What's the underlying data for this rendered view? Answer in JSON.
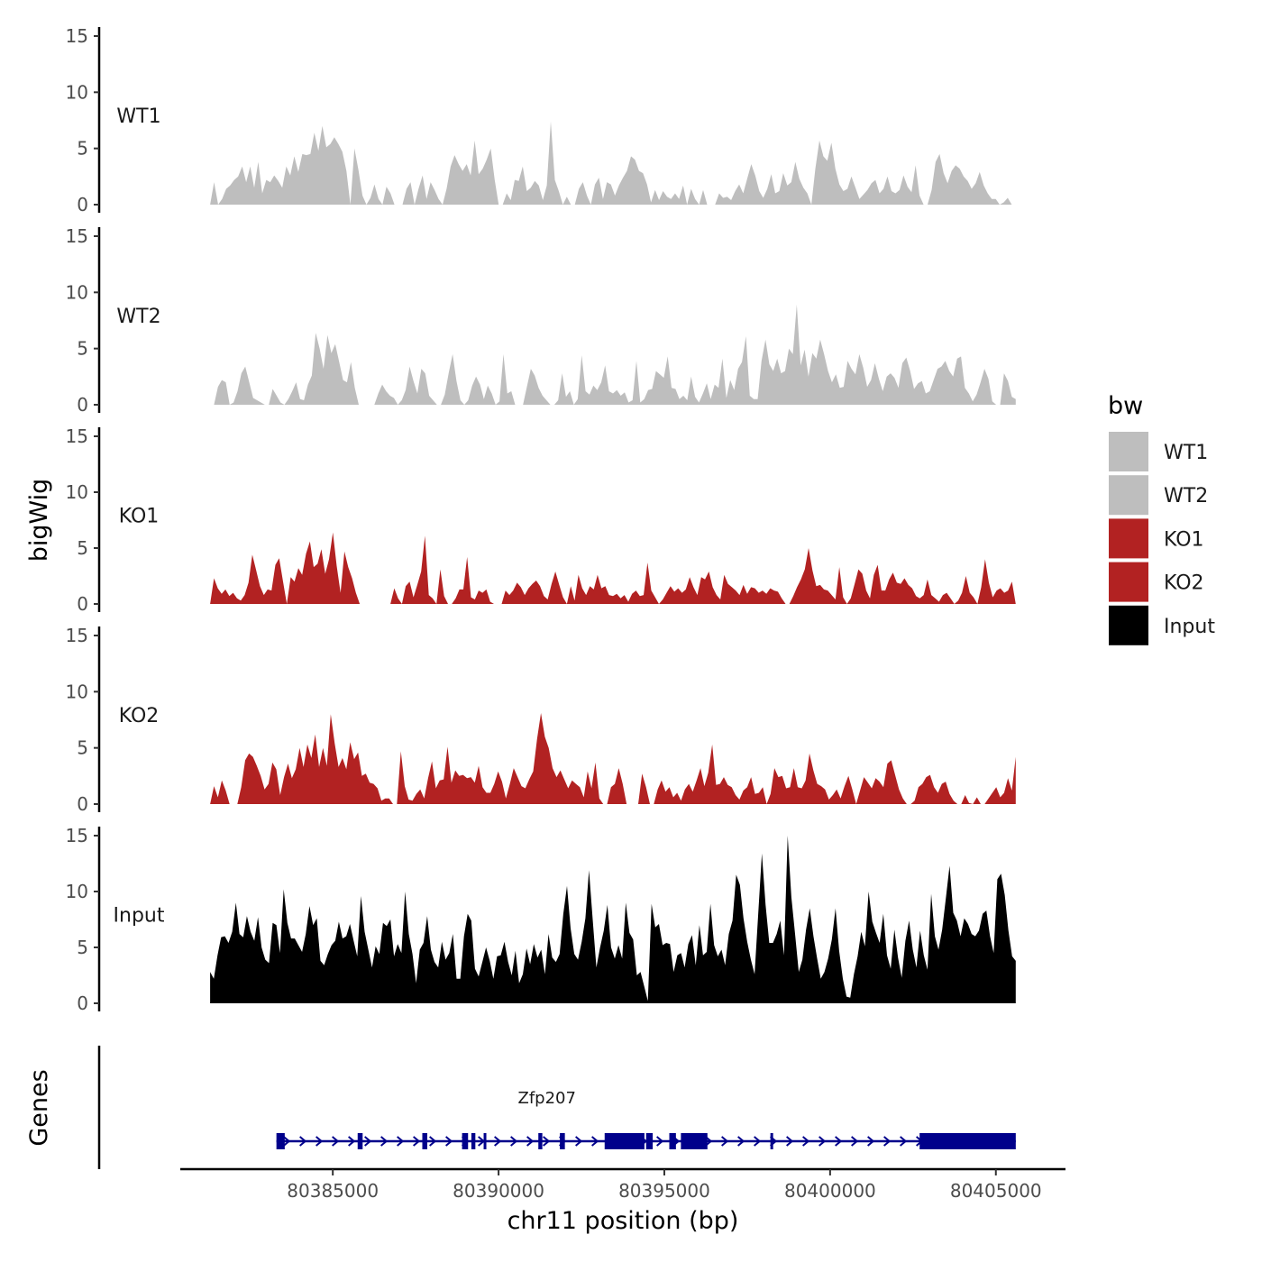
{
  "chart_data": {
    "type": "area",
    "title": "",
    "ylabel": "bigWig",
    "xlabel": "chr11 position (bp)",
    "genes_track_label": "Genes",
    "ylim": [
      0,
      15
    ],
    "yticks": [
      0,
      5,
      10,
      15
    ],
    "ytick_labels": [
      "0",
      "5",
      "10",
      "15"
    ],
    "xlim": [
      80380400,
      80407100
    ],
    "xticks": [
      80385000,
      80390000,
      80395000,
      80400000,
      80405000
    ],
    "xtick_labels": [
      "80385000",
      "80390000",
      "80395000",
      "80400000",
      "80405000"
    ],
    "legend": {
      "title": "bw",
      "placement": "right",
      "entries": [
        {
          "label": "WT1",
          "color": "#BEBEBE"
        },
        {
          "label": "WT2",
          "color": "#BEBEBE"
        },
        {
          "label": "KO1",
          "color": "#B22222"
        },
        {
          "label": "KO2",
          "color": "#B22222"
        },
        {
          "label": "Input",
          "color": "#000000"
        }
      ]
    },
    "series": [
      {
        "name": "WT1",
        "color": "#BEBEBE",
        "x_start": 80381300,
        "x_end": 80405600,
        "values": [
          0,
          2.0,
          0,
          0.5,
          1.4,
          1.7,
          2.2,
          2.5,
          3.4,
          2.0,
          3.4,
          1.5,
          3.8,
          1.0,
          2.2,
          2.0,
          2.6,
          2.1,
          1.5,
          3.4,
          2.6,
          4.3,
          2.9,
          4.5,
          4.4,
          4.5,
          6.4,
          4.8,
          7.0,
          5.1,
          5.4,
          6.0,
          5.4,
          4.7,
          3.0,
          0,
          5.0,
          3.1,
          0.8,
          0,
          0.6,
          1.8,
          0.5,
          0,
          1.6,
          1.0,
          0,
          0,
          0,
          1.4,
          2.0,
          0,
          1.4,
          2.6,
          0.5,
          2.0,
          1.3,
          0.5,
          0,
          1.4,
          3.4,
          4.4,
          3.6,
          3.0,
          3.6,
          2.6,
          5.7,
          2.7,
          3.2,
          4.0,
          5.0,
          2.2,
          0,
          0,
          1.0,
          0.4,
          2.2,
          2.1,
          3.4,
          1.2,
          1.5,
          2.1,
          1.7,
          0.4,
          1.7,
          7.4,
          2.2,
          1.2,
          0,
          0.7,
          0,
          0,
          1.4,
          2.0,
          0.8,
          0,
          1.8,
          2.4,
          0.5,
          2.0,
          1.8,
          0.8,
          1.7,
          2.4,
          3.0,
          4.3,
          4.0,
          3.0,
          2.8,
          1.8,
          0.2,
          1.3,
          0.4,
          1.2,
          0.7,
          0.5,
          1.0,
          0.5,
          1.7,
          0,
          1.4,
          0.5,
          0,
          1.3,
          0,
          0,
          0,
          1.0,
          0.6,
          0.7,
          0.4,
          1.2,
          1.8,
          1.0,
          2.3,
          3.6,
          2.6,
          1.2,
          0.6,
          1.4,
          2.7,
          1.0,
          1.2,
          2.8,
          1.7,
          2.0,
          3.8,
          2.3,
          1.5,
          1.0,
          0,
          3.2,
          5.7,
          4.3,
          3.9,
          5.5,
          3.2,
          1.8,
          1.2,
          1.4,
          2.5,
          1.5,
          0.5,
          0.9,
          1.3,
          1.9,
          2.2,
          1.0,
          1.4,
          2.5,
          1.2,
          1.0,
          1.3,
          2.6,
          1.6,
          1.1,
          3.5,
          0.8,
          0,
          0,
          1.3,
          3.8,
          4.5,
          2.8,
          1.9,
          3.0,
          3.5,
          3.2,
          2.5,
          2.1,
          1.4,
          1.9,
          2.9,
          1.7,
          1.0,
          0.5,
          0.5,
          0,
          0.2,
          0.6,
          0,
          0
        ]
      },
      {
        "name": "WT2",
        "color": "#BEBEBE",
        "x_start": 80381300,
        "x_end": 80405600,
        "values": [
          0,
          0,
          1.6,
          2.2,
          2.0,
          0,
          0.2,
          1.2,
          2.8,
          3.4,
          2.0,
          0.6,
          0.4,
          0.2,
          0,
          0,
          1.4,
          0.8,
          0.2,
          0,
          0.5,
          1.2,
          2.0,
          0.5,
          0.4,
          1.8,
          2.6,
          6.4,
          5.0,
          3.2,
          6.2,
          4.6,
          5.4,
          3.8,
          2.2,
          2.0,
          3.8,
          1.5,
          0,
          0,
          0,
          0,
          0,
          1.0,
          1.8,
          1.2,
          0.8,
          0.6,
          0,
          0.4,
          1.3,
          3.4,
          2.1,
          1.0,
          3.2,
          2.8,
          0.8,
          0.4,
          0,
          0,
          0.9,
          2.8,
          4.5,
          2.1,
          0.4,
          0,
          0.4,
          1.7,
          2.5,
          1.8,
          0.5,
          1.7,
          1.0,
          0,
          0.3,
          4.5,
          1.0,
          1.2,
          0,
          0,
          0,
          1.6,
          3.2,
          2.6,
          1.5,
          0.8,
          0.4,
          0,
          0,
          0.4,
          2.8,
          0.7,
          1.2,
          0,
          0.5,
          4.4,
          1.2,
          0.9,
          1.7,
          1.3,
          2.0,
          3.5,
          1.2,
          1.0,
          1.3,
          0.8,
          1.1,
          0.2,
          0.4,
          3.9,
          0.2,
          0.5,
          1.3,
          1.4,
          3.0,
          2.7,
          2.4,
          4.3,
          1.5,
          1.4,
          0.5,
          0.8,
          0.4,
          2.5,
          0.7,
          0.2,
          1.0,
          1.9,
          0.5,
          1.8,
          1.5,
          4.1,
          0.6,
          2.2,
          1.3,
          3.2,
          3.8,
          6.1,
          0.8,
          0.5,
          0.5,
          3.9,
          5.8,
          3.6,
          3.0,
          4.1,
          2.8,
          3.0,
          5.0,
          4.5,
          8.9,
          3.5,
          4.9,
          2.5,
          4.6,
          4.1,
          5.8,
          4.5,
          3.0,
          2.0,
          2.7,
          1.5,
          1.6,
          3.9,
          3.2,
          2.7,
          4.5,
          3.3,
          1.6,
          2.2,
          3.7,
          2.3,
          1.2,
          2.5,
          2.8,
          2.4,
          1.5,
          3.7,
          4.2,
          3.0,
          1.4,
          1.9,
          2.1,
          1.0,
          1.2,
          2.2,
          3.2,
          3.4,
          3.9,
          3.0,
          2.5,
          4.1,
          4.3,
          1.5,
          1.0,
          0.3,
          0.9,
          2.0,
          3.2,
          2.3,
          0.3,
          0,
          0,
          2.8,
          2.1,
          0.7,
          0.5
        ]
      },
      {
        "name": "KO1",
        "color": "#B22222",
        "x_start": 80381300,
        "x_end": 80405600,
        "values": [
          0,
          2.3,
          1.4,
          0.9,
          1.3,
          0.7,
          1.0,
          0.5,
          0.3,
          0.8,
          1.9,
          4.4,
          3.0,
          1.6,
          0.8,
          1.3,
          1.2,
          3.5,
          4.1,
          2.0,
          0,
          2.4,
          2.0,
          3.2,
          2.6,
          4.5,
          5.6,
          3.3,
          3.6,
          4.9,
          2.7,
          4.0,
          6.4,
          3.4,
          1.0,
          4.7,
          3.3,
          2.3,
          1.0,
          0,
          0,
          0,
          0,
          0,
          0,
          0,
          0,
          0,
          1.4,
          0.5,
          0,
          1.6,
          2.0,
          0.6,
          1.7,
          2.9,
          6.1,
          0.8,
          0.5,
          0,
          3.1,
          0.7,
          0,
          0,
          0.5,
          1.3,
          1.3,
          4.2,
          0.6,
          0.4,
          1.2,
          1.0,
          1.3,
          0.2,
          0,
          0,
          0,
          1.2,
          0.8,
          1.2,
          1.9,
          1.5,
          0.8,
          1.4,
          1.8,
          2.1,
          1.6,
          0.7,
          0.4,
          1.8,
          2.9,
          1.7,
          0.6,
          0,
          1.6,
          0.3,
          2.6,
          1.4,
          0.8,
          1.6,
          1.3,
          2.6,
          1.4,
          1.6,
          0.8,
          0.7,
          0.9,
          0.5,
          0.8,
          0.2,
          0.9,
          1.2,
          0.7,
          0.8,
          3.7,
          1.2,
          0.6,
          0,
          0.4,
          1.0,
          1.6,
          1.1,
          1.4,
          1.0,
          1.3,
          2.4,
          1.5,
          0.8,
          2.4,
          2.2,
          2.9,
          1.5,
          0.8,
          0.4,
          2.6,
          1.8,
          1.5,
          1.2,
          0.8,
          1.7,
          0.9,
          1.5,
          1.4,
          1.0,
          1.2,
          0.9,
          1.4,
          1.2,
          1.1,
          0.5,
          0,
          0,
          0.7,
          1.5,
          2.2,
          3.1,
          5.0,
          3.0,
          1.6,
          1.7,
          1.3,
          1.2,
          0.8,
          0.4,
          3.3,
          0.6,
          0,
          0.5,
          1.8,
          3.1,
          2.7,
          1.2,
          0.5,
          2.6,
          3.5,
          1.2,
          1.2,
          2.2,
          2.8,
          1.9,
          1.8,
          2.3,
          1.7,
          1.4,
          0.7,
          0.5,
          0.8,
          2.2,
          0.8,
          0.5,
          0.2,
          0.8,
          1.0,
          0.5,
          0,
          0.3,
          1.0,
          2.5,
          1.0,
          0.6,
          0,
          1.5,
          4.0,
          1.9,
          0.6,
          1.2,
          1.4,
          1.0,
          1.2,
          2.0,
          0
        ]
      },
      {
        "name": "KO2",
        "color": "#B22222",
        "x_start": 80381300,
        "x_end": 80405600,
        "values": [
          0,
          1.6,
          0.6,
          2.1,
          1.2,
          0,
          0,
          0,
          1.5,
          3.9,
          4.5,
          4.2,
          3.4,
          2.5,
          1.3,
          1.8,
          3.7,
          3.1,
          0.8,
          2.4,
          3.6,
          2.3,
          3.1,
          5.0,
          3.3,
          5.3,
          4.1,
          6.2,
          3.3,
          5.0,
          3.4,
          8.0,
          5.4,
          3.3,
          4.1,
          3.1,
          5.5,
          4.0,
          4.6,
          2.5,
          2.7,
          1.9,
          1.8,
          1.4,
          0.3,
          0.5,
          0.5,
          0,
          0,
          4.7,
          1.6,
          0.4,
          0.3,
          0.9,
          1.3,
          0.5,
          2.3,
          3.8,
          1.4,
          2.1,
          2.2,
          5.1,
          1.9,
          3.0,
          2.5,
          2.6,
          2.3,
          2.4,
          1.9,
          3.4,
          1.5,
          1.0,
          1.0,
          1.8,
          2.9,
          2.0,
          0.5,
          1.8,
          3.2,
          2.4,
          1.6,
          1.4,
          2.2,
          2.9,
          5.8,
          8.1,
          6.0,
          5.0,
          3.2,
          2.4,
          3.0,
          2.2,
          1.4,
          2.1,
          1.8,
          1.5,
          0.6,
          2.9,
          1.4,
          3.7,
          0.5,
          0,
          0,
          1.5,
          1.8,
          3.2,
          1.8,
          0,
          0,
          0,
          0,
          2.7,
          1.5,
          0,
          0,
          1.3,
          2.1,
          1.1,
          1.5,
          0.6,
          1.0,
          0.3,
          1.3,
          1.8,
          1.1,
          2.1,
          3.2,
          1.6,
          2.8,
          5.3,
          1.7,
          1.8,
          2.4,
          1.7,
          1.5,
          0.8,
          0.4,
          1.2,
          1.5,
          2.4,
          0.9,
          1.0,
          1.5,
          0,
          0.9,
          3.2,
          2.4,
          2.5,
          1.4,
          1.5,
          3.2,
          1.5,
          1.4,
          2.1,
          4.5,
          3.0,
          1.8,
          1.6,
          1.3,
          0.4,
          0.8,
          1.3,
          0.5,
          1.6,
          2.5,
          1.3,
          0,
          1.2,
          2.4,
          1.9,
          1.4,
          2.3,
          2.0,
          1.5,
          3.6,
          3.9,
          2.6,
          1.3,
          0.5,
          0,
          0,
          0.3,
          1.5,
          1.8,
          2.4,
          2.6,
          1.5,
          1.0,
          1.8,
          2.0,
          0.9,
          0.3,
          0,
          0,
          0.8,
          0.1,
          0,
          0.6,
          0,
          0,
          0.5,
          1.0,
          1.5,
          0.6,
          1.0,
          2.3,
          1.2,
          4.2
        ]
      },
      {
        "name": "Input",
        "color": "#000000",
        "x_start": 80381300,
        "x_end": 80405600,
        "values": [
          2.8,
          2.2,
          4.3,
          5.9,
          6.0,
          5.4,
          6.4,
          9.0,
          6.2,
          5.9,
          7.8,
          6.4,
          5.6,
          7.7,
          5.0,
          3.9,
          3.6,
          7.2,
          7.0,
          4.5,
          10.2,
          7.2,
          5.8,
          5.8,
          5.2,
          4.6,
          6.2,
          8.7,
          7.0,
          7.6,
          3.8,
          3.4,
          4.4,
          5.2,
          5.6,
          7.3,
          5.8,
          6.0,
          7.1,
          5.6,
          4.2,
          9.6,
          6.4,
          4.8,
          3.2,
          5.1,
          4.4,
          7.2,
          6.9,
          7.5,
          4.2,
          5.3,
          4.5,
          10.0,
          6.2,
          4.4,
          1.8,
          4.8,
          5.4,
          7.8,
          4.8,
          3.7,
          3.2,
          5.5,
          3.9,
          4.5,
          6.2,
          2.2,
          2.2,
          6.0,
          8.0,
          7.4,
          3.1,
          2.4,
          3.7,
          5.0,
          3.8,
          2.2,
          4.2,
          4.3,
          5.5,
          3.7,
          2.5,
          4.7,
          1.8,
          2.6,
          4.9,
          3.5,
          5.3,
          4.1,
          4.8,
          2.6,
          6.2,
          4.1,
          3.7,
          4.4,
          8.0,
          10.5,
          6.7,
          4.4,
          3.9,
          5.5,
          7.6,
          11.9,
          7.5,
          3.2,
          5.0,
          6.5,
          8.8,
          5.0,
          4.0,
          5.2,
          4.0,
          9.0,
          6.3,
          5.7,
          2.5,
          2.8,
          1.5,
          0.2,
          8.9,
          6.8,
          7.1,
          5.2,
          5.4,
          5.3,
          2.8,
          4.3,
          4.5,
          3.2,
          5.3,
          6.1,
          3.4,
          7.0,
          4.3,
          4.6,
          8.9,
          5.2,
          4.2,
          4.8,
          3.4,
          6.2,
          7.4,
          11.5,
          10.6,
          7.6,
          5.5,
          3.9,
          2.6,
          8.1,
          13.4,
          8.8,
          5.4,
          5.4,
          6.2,
          7.4,
          4.3,
          15.0,
          9.5,
          6.2,
          2.8,
          3.9,
          6.6,
          8.5,
          6.0,
          4.0,
          2.2,
          2.8,
          4.0,
          5.7,
          8.5,
          4.7,
          2.2,
          0.6,
          0.5,
          2.6,
          4.2,
          6.4,
          5.1,
          10.0,
          7.3,
          6.3,
          5.4,
          8.0,
          4.3,
          3.1,
          6.6,
          4.1,
          2.3,
          5.6,
          7.4,
          4.8,
          3.2,
          6.5,
          4.3,
          3.0,
          9.8,
          6.0,
          4.8,
          6.6,
          9.4,
          12.3,
          8.1,
          7.4,
          6.0,
          7.6,
          7.1,
          6.2,
          6.0,
          6.5,
          8.0,
          8.3,
          6.0,
          4.5,
          11.1,
          11.6,
          9.7,
          6.5,
          4.2,
          3.8
        ]
      }
    ],
    "genes": [
      {
        "name": "Zfp207",
        "strand": "+",
        "start": 80383300,
        "end": 80405600,
        "exons": [
          [
            80383300,
            80383550
          ],
          [
            80385750,
            80385900
          ],
          [
            80387700,
            80387850
          ],
          [
            80388900,
            80389080
          ],
          [
            80389180,
            80389300
          ],
          [
            80389550,
            80389620
          ],
          [
            80391200,
            80391320
          ],
          [
            80391850,
            80392000
          ],
          [
            80393200,
            80394400
          ],
          [
            80394450,
            80394650
          ],
          [
            80395150,
            80395350
          ],
          [
            80395500,
            80396300
          ],
          [
            80398200,
            80398260
          ],
          [
            80402700,
            80405600
          ]
        ]
      }
    ]
  }
}
